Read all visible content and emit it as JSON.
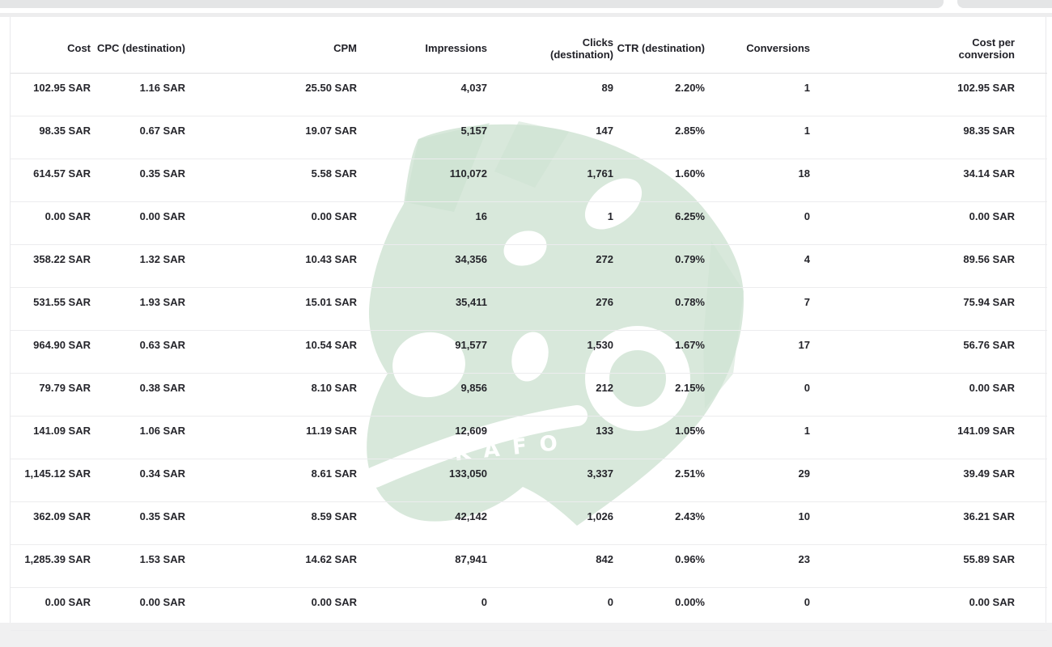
{
  "watermark": {
    "brand": "KAFO",
    "color": "#d8e8db",
    "color_dark": "#cde2d1"
  },
  "table": {
    "columns": [
      {
        "id": "cost",
        "label": "Cost"
      },
      {
        "id": "cpc_destination",
        "label": "CPC (destination)"
      },
      {
        "id": "cpm",
        "label": "CPM"
      },
      {
        "id": "impressions",
        "label": "Impressions"
      },
      {
        "id": "clicks_destination",
        "label": "Clicks\n(destination)"
      },
      {
        "id": "ctr_destination",
        "label": "CTR (destination)"
      },
      {
        "id": "conversions",
        "label": "Conversions"
      },
      {
        "id": "cost_per_conversion",
        "label": "Cost per\nconversion"
      }
    ],
    "rows": [
      [
        "102.95 SAR",
        "1.16 SAR",
        "25.50 SAR",
        "4,037",
        "89",
        "2.20%",
        "1",
        "102.95 SAR"
      ],
      [
        "98.35 SAR",
        "0.67 SAR",
        "19.07 SAR",
        "5,157",
        "147",
        "2.85%",
        "1",
        "98.35 SAR"
      ],
      [
        "614.57 SAR",
        "0.35 SAR",
        "5.58 SAR",
        "110,072",
        "1,761",
        "1.60%",
        "18",
        "34.14 SAR"
      ],
      [
        "0.00 SAR",
        "0.00 SAR",
        "0.00 SAR",
        "16",
        "1",
        "6.25%",
        "0",
        "0.00 SAR"
      ],
      [
        "358.22 SAR",
        "1.32 SAR",
        "10.43 SAR",
        "34,356",
        "272",
        "0.79%",
        "4",
        "89.56 SAR"
      ],
      [
        "531.55 SAR",
        "1.93 SAR",
        "15.01 SAR",
        "35,411",
        "276",
        "0.78%",
        "7",
        "75.94 SAR"
      ],
      [
        "964.90 SAR",
        "0.63 SAR",
        "10.54 SAR",
        "91,577",
        "1,530",
        "1.67%",
        "17",
        "56.76 SAR"
      ],
      [
        "79.79 SAR",
        "0.38 SAR",
        "8.10 SAR",
        "9,856",
        "212",
        "2.15%",
        "0",
        "0.00 SAR"
      ],
      [
        "141.09 SAR",
        "1.06 SAR",
        "11.19 SAR",
        "12,609",
        "133",
        "1.05%",
        "1",
        "141.09 SAR"
      ],
      [
        "1,145.12 SAR",
        "0.34 SAR",
        "8.61 SAR",
        "133,050",
        "3,337",
        "2.51%",
        "29",
        "39.49 SAR"
      ],
      [
        "362.09 SAR",
        "0.35 SAR",
        "8.59 SAR",
        "42,142",
        "1,026",
        "2.43%",
        "10",
        "36.21 SAR"
      ],
      [
        "1,285.39 SAR",
        "1.53 SAR",
        "14.62 SAR",
        "87,941",
        "842",
        "0.96%",
        "23",
        "55.89 SAR"
      ],
      [
        "0.00 SAR",
        "0.00 SAR",
        "0.00 SAR",
        "0",
        "0",
        "0.00%",
        "0",
        "0.00 SAR"
      ]
    ]
  }
}
